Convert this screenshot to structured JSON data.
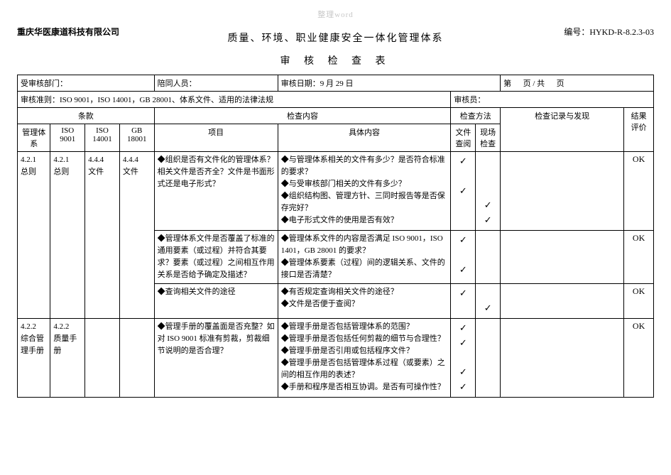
{
  "watermark": "整理word",
  "company": "重庆华医康道科技有限公司",
  "doc_no_label": "编号：",
  "doc_no": "HYKD-R-8.2.3-03",
  "title_line1": "质量、环境、职业健康安全一体化管理体系",
  "title_line2": "审 核 检 查 表",
  "meta": {
    "dept_label": "受审核部门：",
    "escort_label": "陪同人员：",
    "date_label": "审核日期：",
    "date_value": "9 月 29 日",
    "page_prefix": "第",
    "page_mid": "页 / 共",
    "page_suffix": "页",
    "criteria_label": "审核准则：",
    "criteria_value": "ISO 9001，ISO 14001，GB 28001、体系文件、适用的法律法规",
    "auditor_label": "审核员："
  },
  "head": {
    "clause": "条款",
    "check_content": "检查内容",
    "check_method": "检查方法",
    "record": "检查记录与发现",
    "result": "结果评价",
    "sys": "管理体系",
    "iso9001": "ISO 9001",
    "iso14001": "ISO 14001",
    "gb18001": "GB 18001",
    "project": "项目",
    "content": "具体内容",
    "method_file": "文件查阅",
    "method_site": "现场检查"
  },
  "rows": [
    {
      "sys": "4.2.1\n总则",
      "iso9001": "4.2.1\n总则",
      "iso14001": "4.4.4\n文件",
      "gb18001": "4.4.4\n文件",
      "project": "◆组织是否有文件化的管理体系？相关文件是否齐全？文件是书面形式还是电子形式？",
      "content": "◆与管理体系相关的文件有多少？是否符合标准的要求？\n◆与受审核部门相关的文件有多少？\n◆组织结构图、管理方针、三同时报告等是否保存完好？\n◆电子形式文件的使用是否有效？",
      "m1": "✓\n\n✓",
      "m2": "\n\n\n✓\n✓",
      "record": "",
      "result": "OK",
      "clause_span": 3
    },
    {
      "project": "◆管理体系文件是否覆盖了标准的通用要素（或过程）并符合其要求？要素（或过程）之间相互作用关系是否给予确定及描述？",
      "content": "◆管理体系文件的内容是否满足 ISO 9001，ISO 1401，GB 28001 的要求？\n◆管理体系要素（过程）间的逻辑关系、文件的接口是否清楚？",
      "m1": "✓\n\n✓",
      "m2": "",
      "record": "",
      "result": "OK"
    },
    {
      "project": "◆查询相关文件的途径",
      "content": "◆有否规定查询相关文件的途径？\n◆文件是否便于查阅？",
      "m1": "✓",
      "m2": "\n✓",
      "record": "",
      "result": "OK"
    },
    {
      "sys": "4.2.2\n综合管理手册",
      "iso9001": "4.2.2\n质量手册",
      "iso14001": "",
      "gb18001": "",
      "project": "◆管理手册的覆盖面是否充整？如对 ISO 9001 标准有剪裁，剪裁细节说明的是否合理？",
      "content": "◆管理手册是否包括管理体系的范围？\n◆管理手册是否包括任何剪裁的细节与合理性？\n◆管理手册是否引用或包括程序文件？\n◆管理手册是否包括管理体系过程（或要素）之间的相互作用的表述？\n◆手册和程序是否相互协调。是否有可操作性？",
      "m1": "✓\n✓\n\n✓\n✓",
      "m2": "",
      "record": "",
      "result": "OK",
      "clause_span": 1
    }
  ]
}
